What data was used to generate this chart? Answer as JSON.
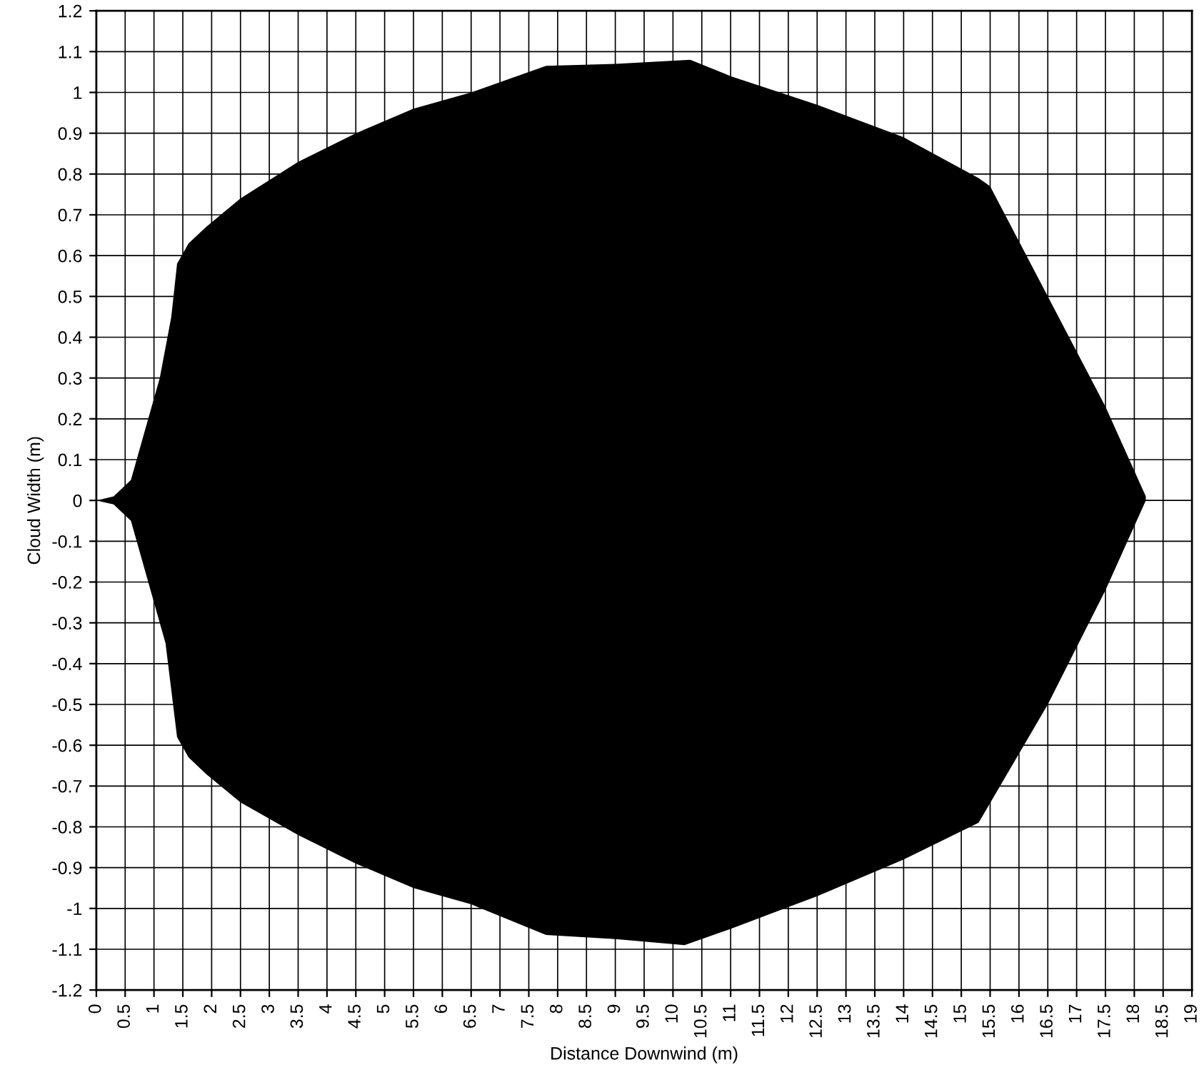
{
  "chart_data": {
    "type": "area",
    "xlabel": "Distance Downwind (m)",
    "ylabel": "Cloud Width (m)",
    "series": [
      {
        "color": "#000000",
        "x": [
          0,
          0.3,
          0.6,
          0.9,
          1.1,
          1.3,
          1.4,
          1.6,
          1.9,
          2.5,
          3.5,
          4.5,
          5.5,
          6.5,
          7.8,
          9,
          10.3,
          11,
          12.5,
          14,
          15.3,
          15.5,
          16.5,
          17.5,
          18.2
        ],
        "values": [
          0,
          0.01,
          0.05,
          0.2,
          0.3,
          0.45,
          0.58,
          0.63,
          0.67,
          0.74,
          0.83,
          0.9,
          0.96,
          1.0,
          1.065,
          1.07,
          1.08,
          1.04,
          0.97,
          0.89,
          0.79,
          0.77,
          0.5,
          0.23,
          0.01
        ]
      },
      {
        "color": "#000000",
        "x": [
          0,
          0.3,
          0.6,
          0.9,
          1.2,
          1.4,
          1.6,
          1.9,
          2.5,
          3.5,
          4.5,
          5.5,
          6.5,
          7.8,
          9,
          10.2,
          11,
          12.5,
          14,
          15.3,
          16.5,
          17.5,
          18.2
        ],
        "values": [
          0,
          -0.01,
          -0.05,
          -0.2,
          -0.35,
          -0.58,
          -0.63,
          -0.67,
          -0.74,
          -0.82,
          -0.89,
          -0.95,
          -0.99,
          -1.065,
          -1.075,
          -1.09,
          -1.05,
          -0.97,
          -0.88,
          -0.79,
          -0.5,
          -0.22,
          0
        ]
      }
    ],
    "xlim": [
      0,
      19
    ],
    "xticks": [
      0,
      0.5,
      1,
      1.5,
      2,
      2.5,
      3,
      3.5,
      4,
      4.5,
      5,
      5.5,
      6,
      6.5,
      7,
      7.5,
      8,
      8.5,
      9,
      9.5,
      10,
      10.5,
      11,
      11.5,
      12,
      12.5,
      13,
      13.5,
      14,
      14.5,
      15,
      15.5,
      16,
      16.5,
      17,
      17.5,
      18,
      18.5,
      19
    ],
    "ylim": [
      -1.2,
      1.2
    ],
    "yticks": [
      -1.2,
      -1.1,
      -1,
      -0.9,
      -0.8,
      -0.7,
      -0.6,
      -0.5,
      -0.4,
      -0.3,
      -0.2,
      -0.1,
      0,
      0.1,
      0.2,
      0.3,
      0.4,
      0.5,
      0.6,
      0.7,
      0.8,
      0.9,
      1,
      1.1,
      1.2
    ],
    "grid": true
  }
}
